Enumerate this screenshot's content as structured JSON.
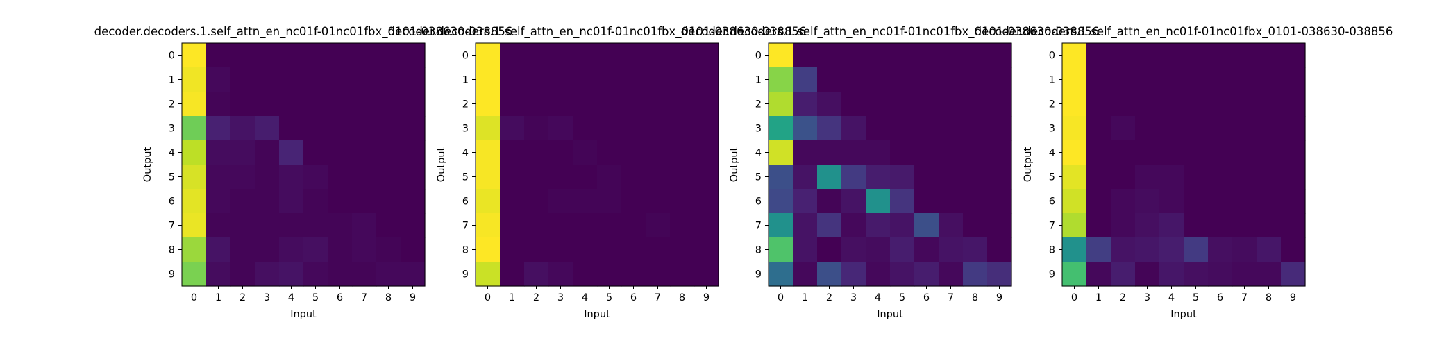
{
  "chart_data": [
    {
      "type": "heatmap",
      "title": "decoder.decoders.1.self_attn_en_nc01f-01nc01fbx_0101-038630-038856",
      "xlabel": "Input",
      "ylabel": "Output",
      "x_ticks": [
        "0",
        "1",
        "2",
        "3",
        "4",
        "5",
        "6",
        "7",
        "8",
        "9"
      ],
      "y_ticks": [
        "0",
        "1",
        "2",
        "3",
        "4",
        "5",
        "6",
        "7",
        "8",
        "9"
      ],
      "colormap": "viridis",
      "value_range": [
        0,
        1
      ],
      "values": [
        [
          1.0,
          0.0,
          0.0,
          0.0,
          0.0,
          0.0,
          0.0,
          0.0,
          0.0,
          0.0
        ],
        [
          0.98,
          0.02,
          0.0,
          0.0,
          0.0,
          0.0,
          0.0,
          0.0,
          0.0,
          0.0
        ],
        [
          0.99,
          0.01,
          0.0,
          0.0,
          0.0,
          0.0,
          0.0,
          0.0,
          0.0,
          0.0
        ],
        [
          0.78,
          0.09,
          0.05,
          0.08,
          0.0,
          0.0,
          0.0,
          0.0,
          0.0,
          0.0
        ],
        [
          0.9,
          0.03,
          0.03,
          0.01,
          0.1,
          0.0,
          0.0,
          0.0,
          0.0,
          0.0
        ],
        [
          0.94,
          0.02,
          0.02,
          0.01,
          0.03,
          0.02,
          0.0,
          0.0,
          0.0,
          0.0
        ],
        [
          0.96,
          0.02,
          0.01,
          0.01,
          0.03,
          0.01,
          0.0,
          0.0,
          0.0,
          0.0
        ],
        [
          0.97,
          0.01,
          0.01,
          0.01,
          0.01,
          0.01,
          0.01,
          0.02,
          0.0,
          0.0
        ],
        [
          0.85,
          0.05,
          0.01,
          0.01,
          0.03,
          0.04,
          0.01,
          0.02,
          0.01,
          0.0
        ],
        [
          0.8,
          0.03,
          0.01,
          0.04,
          0.05,
          0.02,
          0.01,
          0.01,
          0.02,
          0.02
        ]
      ]
    },
    {
      "type": "heatmap",
      "title": "decoder.decoders.1.self_attn_en_nc01f-01nc01fbx_0101-038630-038856",
      "xlabel": "Input",
      "ylabel": "Output",
      "x_ticks": [
        "0",
        "1",
        "2",
        "3",
        "4",
        "5",
        "6",
        "7",
        "8",
        "9"
      ],
      "y_ticks": [
        "0",
        "1",
        "2",
        "3",
        "4",
        "5",
        "6",
        "7",
        "8",
        "9"
      ],
      "colormap": "viridis",
      "value_range": [
        0,
        1
      ],
      "values": [
        [
          1.0,
          0.0,
          0.0,
          0.0,
          0.0,
          0.0,
          0.0,
          0.0,
          0.0,
          0.0
        ],
        [
          1.0,
          0.0,
          0.0,
          0.0,
          0.0,
          0.0,
          0.0,
          0.0,
          0.0,
          0.0
        ],
        [
          1.0,
          0.0,
          0.0,
          0.0,
          0.0,
          0.0,
          0.0,
          0.0,
          0.0,
          0.0
        ],
        [
          0.95,
          0.03,
          0.01,
          0.02,
          0.0,
          0.0,
          0.0,
          0.0,
          0.0,
          0.0
        ],
        [
          0.99,
          0.0,
          0.0,
          0.0,
          0.01,
          0.0,
          0.0,
          0.0,
          0.0,
          0.0
        ],
        [
          0.99,
          0.0,
          0.0,
          0.0,
          0.0,
          0.01,
          0.0,
          0.0,
          0.0,
          0.0
        ],
        [
          0.97,
          0.0,
          0.0,
          0.01,
          0.01,
          0.01,
          0.0,
          0.0,
          0.0,
          0.0
        ],
        [
          0.99,
          0.0,
          0.0,
          0.0,
          0.0,
          0.0,
          0.0,
          0.01,
          0.0,
          0.0
        ],
        [
          1.0,
          0.0,
          0.0,
          0.0,
          0.0,
          0.0,
          0.0,
          0.0,
          0.0,
          0.0
        ],
        [
          0.92,
          0.0,
          0.04,
          0.02,
          0.0,
          0.0,
          0.0,
          0.0,
          0.0,
          0.0
        ]
      ]
    },
    {
      "type": "heatmap",
      "title": "decoder.decoders.1.self_attn_en_nc01f-01nc01fbx_0101-038630-038856",
      "xlabel": "Input",
      "ylabel": "Output",
      "x_ticks": [
        "0",
        "1",
        "2",
        "3",
        "4",
        "5",
        "6",
        "7",
        "8",
        "9"
      ],
      "y_ticks": [
        "0",
        "1",
        "2",
        "3",
        "4",
        "5",
        "6",
        "7",
        "8",
        "9"
      ],
      "colormap": "viridis",
      "value_range": [
        0,
        1
      ],
      "values": [
        [
          1.0,
          0.0,
          0.0,
          0.0,
          0.0,
          0.0,
          0.0,
          0.0,
          0.0,
          0.0
        ],
        [
          0.82,
          0.18,
          0.0,
          0.0,
          0.0,
          0.0,
          0.0,
          0.0,
          0.0,
          0.0
        ],
        [
          0.88,
          0.08,
          0.04,
          0.0,
          0.0,
          0.0,
          0.0,
          0.0,
          0.0,
          0.0
        ],
        [
          0.58,
          0.25,
          0.15,
          0.05,
          0.0,
          0.0,
          0.0,
          0.0,
          0.0,
          0.0
        ],
        [
          0.93,
          0.02,
          0.02,
          0.02,
          0.02,
          0.0,
          0.0,
          0.0,
          0.0,
          0.0
        ],
        [
          0.24,
          0.05,
          0.5,
          0.17,
          0.08,
          0.07,
          0.0,
          0.0,
          0.0,
          0.0
        ],
        [
          0.22,
          0.09,
          0.01,
          0.05,
          0.5,
          0.15,
          0.0,
          0.0,
          0.0,
          0.0
        ],
        [
          0.5,
          0.05,
          0.15,
          0.02,
          0.07,
          0.05,
          0.24,
          0.04,
          0.0,
          0.0
        ],
        [
          0.72,
          0.05,
          0.0,
          0.04,
          0.03,
          0.08,
          0.02,
          0.05,
          0.06,
          0.0
        ],
        [
          0.36,
          0.02,
          0.24,
          0.11,
          0.02,
          0.05,
          0.08,
          0.02,
          0.17,
          0.13
        ]
      ]
    },
    {
      "type": "heatmap",
      "title": "decoder.decoders.1.self_attn_en_nc01f-01nc01fbx_0101-038630-038856",
      "xlabel": "Input",
      "ylabel": "Output",
      "x_ticks": [
        "0",
        "1",
        "2",
        "3",
        "4",
        "5",
        "6",
        "7",
        "8",
        "9"
      ],
      "y_ticks": [
        "0",
        "1",
        "2",
        "3",
        "4",
        "5",
        "6",
        "7",
        "8",
        "9"
      ],
      "colormap": "viridis",
      "value_range": [
        0,
        1
      ],
      "values": [
        [
          1.0,
          0.0,
          0.0,
          0.0,
          0.0,
          0.0,
          0.0,
          0.0,
          0.0,
          0.0
        ],
        [
          1.0,
          0.0,
          0.0,
          0.0,
          0.0,
          0.0,
          0.0,
          0.0,
          0.0,
          0.0
        ],
        [
          1.0,
          0.0,
          0.0,
          0.0,
          0.0,
          0.0,
          0.0,
          0.0,
          0.0,
          0.0
        ],
        [
          0.99,
          0.0,
          0.02,
          0.0,
          0.0,
          0.0,
          0.0,
          0.0,
          0.0,
          0.0
        ],
        [
          1.0,
          0.0,
          0.0,
          0.0,
          0.0,
          0.0,
          0.0,
          0.0,
          0.0,
          0.0
        ],
        [
          0.96,
          0.0,
          0.0,
          0.02,
          0.02,
          0.0,
          0.0,
          0.0,
          0.0,
          0.0
        ],
        [
          0.93,
          0.0,
          0.02,
          0.03,
          0.02,
          0.0,
          0.0,
          0.0,
          0.0,
          0.0
        ],
        [
          0.88,
          0.0,
          0.02,
          0.04,
          0.06,
          0.0,
          0.0,
          0.0,
          0.0,
          0.0
        ],
        [
          0.5,
          0.18,
          0.05,
          0.06,
          0.08,
          0.17,
          0.04,
          0.03,
          0.06,
          0.0
        ],
        [
          0.7,
          0.02,
          0.08,
          0.01,
          0.06,
          0.04,
          0.03,
          0.02,
          0.02,
          0.12
        ]
      ]
    }
  ]
}
